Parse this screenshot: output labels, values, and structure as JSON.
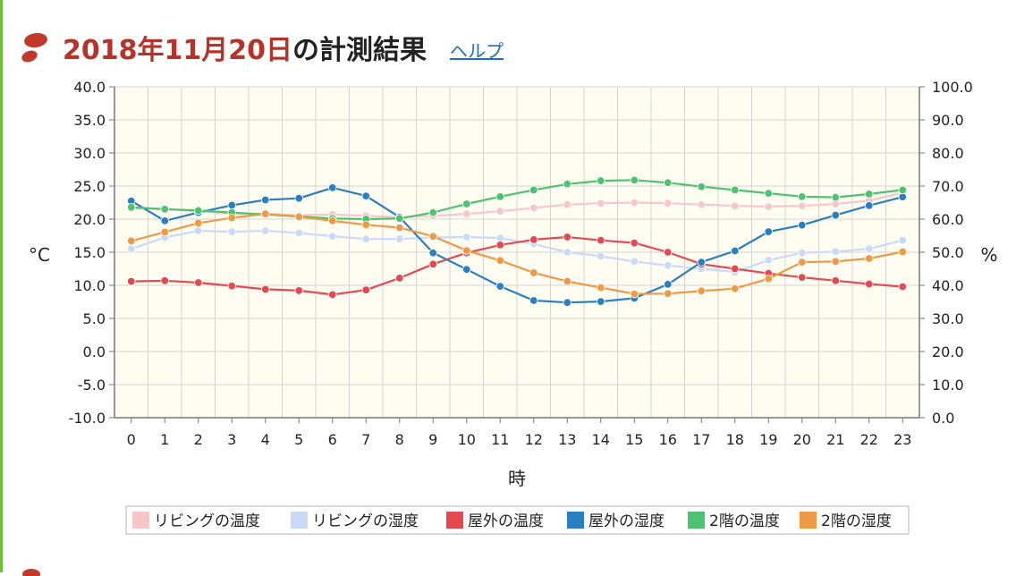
{
  "header": {
    "date_title": "2018年11月20日",
    "title_suffix": "の計測結果",
    "help_label": "ヘルプ",
    "logo_icon": "footprints-icon"
  },
  "colors": {
    "accent": "#b5332a",
    "link": "#1a6fc1",
    "plot_background": "#fffdf2"
  },
  "chart_data": {
    "type": "line",
    "xlabel": "時",
    "ylabel_left": "°C",
    "ylabel_right": "%",
    "x": [
      0,
      1,
      2,
      3,
      4,
      5,
      6,
      7,
      8,
      9,
      10,
      11,
      12,
      13,
      14,
      15,
      16,
      17,
      18,
      19,
      20,
      21,
      22,
      23
    ],
    "ylim_left": [
      -10,
      40
    ],
    "ylim_right": [
      0,
      100
    ],
    "yticks_left": [
      "-10.0",
      "-5.0",
      "0.0",
      "5.0",
      "10.0",
      "15.0",
      "20.0",
      "25.0",
      "30.0",
      "35.0",
      "40.0"
    ],
    "yticks_right": [
      "0.0",
      "10.0",
      "20.0",
      "30.0",
      "40.0",
      "50.0",
      "60.0",
      "70.0",
      "80.0",
      "90.0",
      "100.0"
    ],
    "grid": true,
    "legend_position": "bottom",
    "series": [
      {
        "name": "リビングの温度",
        "axis": "left",
        "color": "#f7c6c8",
        "values": [
          21.6,
          21.5,
          21.2,
          20.8,
          20.8,
          20.6,
          20.7,
          20.5,
          20.3,
          20.5,
          20.8,
          21.2,
          21.7,
          22.2,
          22.4,
          22.5,
          22.4,
          22.2,
          22.0,
          21.9,
          22.0,
          22.3,
          22.8,
          24.0
        ]
      },
      {
        "name": "リビングの湿度",
        "axis": "right",
        "color": "#c9daf8",
        "values": [
          51.0,
          54.5,
          56.5,
          56.2,
          56.5,
          55.8,
          54.8,
          54.0,
          54.0,
          54.5,
          54.6,
          54.3,
          52.5,
          50.0,
          48.8,
          47.2,
          46.0,
          45.0,
          44.0,
          47.6,
          49.8,
          50.2,
          51.0,
          53.6
        ]
      },
      {
        "name": "屋外の温度",
        "axis": "left",
        "color": "#e34a4f",
        "values": [
          10.6,
          10.7,
          10.4,
          9.9,
          9.4,
          9.2,
          8.6,
          9.3,
          11.1,
          13.2,
          14.9,
          16.1,
          16.9,
          17.3,
          16.8,
          16.4,
          15.0,
          13.2,
          12.5,
          11.8,
          11.2,
          10.7,
          10.2,
          9.8
        ]
      },
      {
        "name": "屋外の湿度",
        "axis": "right",
        "color": "#2a7fc0",
        "values": [
          65.5,
          59.5,
          62.0,
          64.2,
          65.8,
          66.3,
          69.5,
          67.0,
          60.6,
          49.8,
          44.8,
          39.7,
          35.4,
          34.8,
          35.1,
          36.1,
          40.3,
          47.0,
          50.4,
          56.2,
          58.2,
          61.2,
          64.1,
          66.7
        ]
      },
      {
        "name": "2階の温度",
        "axis": "left",
        "color": "#4cc36e",
        "values": [
          21.8,
          21.5,
          21.3,
          21.0,
          20.7,
          20.4,
          20.1,
          20.0,
          20.1,
          21.0,
          22.3,
          23.4,
          24.4,
          25.3,
          25.8,
          25.9,
          25.5,
          24.9,
          24.4,
          23.9,
          23.4,
          23.3,
          23.8,
          24.4
        ]
      },
      {
        "name": "2階の湿度",
        "axis": "right",
        "color": "#ef9945",
        "values": [
          53.4,
          56.1,
          58.8,
          60.4,
          61.6,
          60.7,
          59.5,
          58.3,
          57.4,
          54.8,
          50.5,
          47.5,
          43.8,
          41.2,
          39.3,
          37.4,
          37.5,
          38.3,
          39.0,
          42.0,
          47.0,
          47.2,
          48.1,
          50.1
        ]
      }
    ]
  }
}
